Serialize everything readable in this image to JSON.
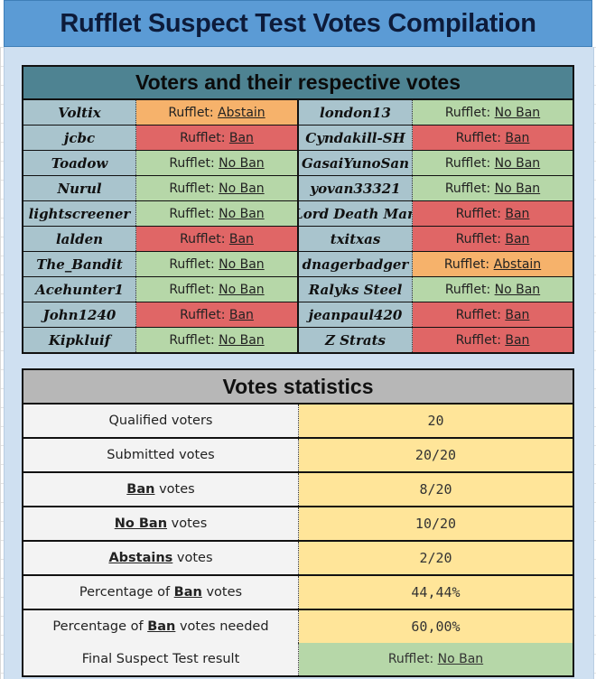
{
  "title": "Rufflet Suspect Test Votes Compilation",
  "voters": {
    "header": "Voters and their respective votes",
    "prefix": "Rufflet:",
    "rows": [
      {
        "left": {
          "name": "Voltix",
          "vote": "Abstain",
          "type": "abstain"
        },
        "right": {
          "name": "london13",
          "vote": "No Ban",
          "type": "noban"
        }
      },
      {
        "left": {
          "name": "jcbc",
          "vote": "Ban",
          "type": "ban"
        },
        "right": {
          "name": "Cyndakill-SH",
          "vote": "Ban",
          "type": "ban"
        }
      },
      {
        "left": {
          "name": "Toadow",
          "vote": "No Ban",
          "type": "noban"
        },
        "right": {
          "name": "GasaiYunoSan",
          "vote": "No Ban",
          "type": "noban"
        }
      },
      {
        "left": {
          "name": "Nurul",
          "vote": "No Ban",
          "type": "noban"
        },
        "right": {
          "name": "yovan33321",
          "vote": "No Ban",
          "type": "noban"
        }
      },
      {
        "left": {
          "name": "lightscreener",
          "vote": "No Ban",
          "type": "noban"
        },
        "right": {
          "name": "Lord Death Man",
          "vote": "Ban",
          "type": "ban"
        }
      },
      {
        "left": {
          "name": "lalden",
          "vote": "Ban",
          "type": "ban"
        },
        "right": {
          "name": "txitxas",
          "vote": "Ban",
          "type": "ban"
        }
      },
      {
        "left": {
          "name": "The_Bandit",
          "vote": "No Ban",
          "type": "noban"
        },
        "right": {
          "name": "dnagerbadger",
          "vote": "Abstain",
          "type": "abstain"
        }
      },
      {
        "left": {
          "name": "Acehunter1",
          "vote": "No Ban",
          "type": "noban"
        },
        "right": {
          "name": "Ralyks Steel",
          "vote": "No Ban",
          "type": "noban"
        }
      },
      {
        "left": {
          "name": "John1240",
          "vote": "Ban",
          "type": "ban"
        },
        "right": {
          "name": "jeanpaul420",
          "vote": "Ban",
          "type": "ban"
        }
      },
      {
        "left": {
          "name": "Kipkluif",
          "vote": "No Ban",
          "type": "noban"
        },
        "right": {
          "name": "Z Strats",
          "vote": "Ban",
          "type": "ban"
        }
      }
    ]
  },
  "stats": {
    "header": "Votes statistics",
    "rows": [
      {
        "pre": "Qualified voters",
        "kw": "",
        "post": "",
        "value": "20"
      },
      {
        "pre": "Submitted votes",
        "kw": "",
        "post": "",
        "value": "20/20"
      },
      {
        "pre": "",
        "kw": "Ban",
        "post": " votes",
        "value": "8/20"
      },
      {
        "pre": "",
        "kw": "No Ban",
        "post": " votes",
        "value": "10/20"
      },
      {
        "pre": "",
        "kw": "Abstains",
        "post": " votes",
        "value": "2/20"
      },
      {
        "pre": "Percentage of ",
        "kw": "Ban",
        "post": " votes",
        "value": "44,44%"
      },
      {
        "pre": "Percentage of ",
        "kw": "Ban",
        "post": " votes needed",
        "value": "60,00%"
      }
    ],
    "final": {
      "label": "Final Suspect Test result",
      "prefix": "Rufflet:",
      "value": "No Ban"
    }
  },
  "colors": {
    "ban": "#e06666",
    "noban": "#b6d7a8",
    "abstain": "#f6b26b",
    "header_blue": "#5b9bd5",
    "header_teal": "#4e8392"
  }
}
